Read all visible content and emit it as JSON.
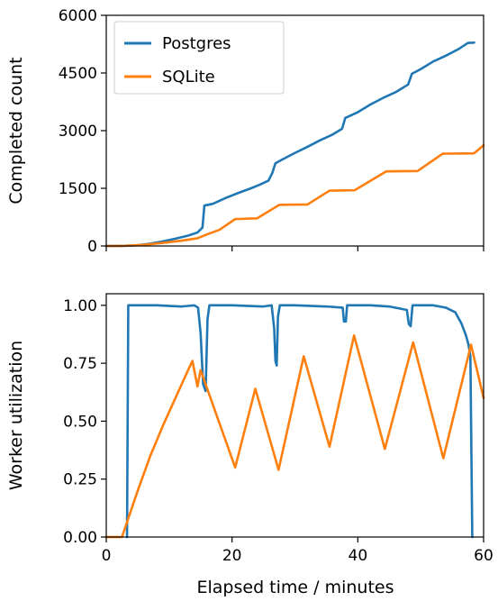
{
  "chart_data": [
    {
      "type": "line",
      "ylabel": "Completed count",
      "xlim": [
        0,
        60
      ],
      "ylim": [
        0,
        6000
      ],
      "x_ticks": [
        "0",
        "20",
        "40",
        "60"
      ],
      "y_ticks": [
        "0",
        "1500",
        "3000",
        "4500",
        "6000"
      ],
      "grid": false,
      "legend": {
        "placement": "top-left",
        "entries": [
          "Postgres",
          "SQLite"
        ]
      },
      "series": [
        {
          "name": "Postgres",
          "color": "#1f77b4",
          "points": [
            [
              0,
              0
            ],
            [
              3,
              5
            ],
            [
              5,
              20
            ],
            [
              7,
              60
            ],
            [
              9,
              120
            ],
            [
              11,
              190
            ],
            [
              13,
              270
            ],
            [
              14.5,
              350
            ],
            [
              15.3,
              480
            ],
            [
              15.6,
              1050
            ],
            [
              17,
              1100
            ],
            [
              19,
              1250
            ],
            [
              21,
              1380
            ],
            [
              23,
              1500
            ],
            [
              24.5,
              1600
            ],
            [
              25.8,
              1700
            ],
            [
              26.4,
              1900
            ],
            [
              26.9,
              2150
            ],
            [
              28,
              2250
            ],
            [
              30,
              2420
            ],
            [
              32,
              2580
            ],
            [
              34,
              2750
            ],
            [
              36,
              2900
            ],
            [
              37.5,
              3050
            ],
            [
              38,
              3330
            ],
            [
              40,
              3480
            ],
            [
              42,
              3680
            ],
            [
              44,
              3850
            ],
            [
              46,
              4000
            ],
            [
              48,
              4200
            ],
            [
              48.6,
              4480
            ],
            [
              50,
              4600
            ],
            [
              52,
              4800
            ],
            [
              54,
              4950
            ],
            [
              56,
              5120
            ],
            [
              57.5,
              5280
            ],
            [
              58.5,
              5290
            ]
          ]
        },
        {
          "name": "SQLite",
          "color": "#ff7f0e",
          "points": [
            [
              0,
              0
            ],
            [
              3,
              5
            ],
            [
              6,
              30
            ],
            [
              9,
              80
            ],
            [
              12,
              140
            ],
            [
              14.5,
              200
            ],
            [
              16,
              300
            ],
            [
              18,
              420
            ],
            [
              20.5,
              700
            ],
            [
              24,
              720
            ],
            [
              27.5,
              1070
            ],
            [
              32,
              1080
            ],
            [
              35.5,
              1440
            ],
            [
              39.5,
              1450
            ],
            [
              44.5,
              1940
            ],
            [
              49.5,
              1950
            ],
            [
              53.5,
              2400
            ],
            [
              58.5,
              2410
            ],
            [
              60,
              2620
            ]
          ]
        }
      ]
    },
    {
      "type": "line",
      "xlabel": "Elapsed time / minutes",
      "ylabel": "Worker utilization",
      "xlim": [
        0,
        60
      ],
      "ylim": [
        0,
        1.05
      ],
      "x_ticks": [
        "0",
        "20",
        "40",
        "60"
      ],
      "y_ticks": [
        "0.00",
        "0.25",
        "0.50",
        "0.75",
        "1.00"
      ],
      "grid": false,
      "series": [
        {
          "name": "Postgres",
          "color": "#1f77b4",
          "points": [
            [
              3.3,
              0
            ],
            [
              3.5,
              1.0
            ],
            [
              8,
              1.0
            ],
            [
              12,
              0.995
            ],
            [
              14,
              1.0
            ],
            [
              14.6,
              0.99
            ],
            [
              15,
              0.88
            ],
            [
              15.4,
              0.66
            ],
            [
              15.8,
              0.63
            ],
            [
              16.1,
              0.94
            ],
            [
              16.4,
              1.0
            ],
            [
              20,
              1.0
            ],
            [
              25,
              0.995
            ],
            [
              26.3,
              1.0
            ],
            [
              26.7,
              0.9
            ],
            [
              26.9,
              0.76
            ],
            [
              27.1,
              0.74
            ],
            [
              27.3,
              0.95
            ],
            [
              27.6,
              1.0
            ],
            [
              30,
              1.0
            ],
            [
              35,
              0.995
            ],
            [
              37.6,
              0.99
            ],
            [
              37.8,
              0.93
            ],
            [
              38.1,
              0.93
            ],
            [
              38.3,
              1.0
            ],
            [
              42,
              1.0
            ],
            [
              45,
              0.995
            ],
            [
              47.8,
              0.98
            ],
            [
              48.1,
              0.92
            ],
            [
              48.4,
              0.91
            ],
            [
              48.7,
              1.0
            ],
            [
              52,
              1.0
            ],
            [
              54,
              0.99
            ],
            [
              55.5,
              0.97
            ],
            [
              56.5,
              0.92
            ],
            [
              57.2,
              0.87
            ],
            [
              57.6,
              0.83
            ],
            [
              57.9,
              0.78
            ],
            [
              58.2,
              0
            ]
          ]
        },
        {
          "name": "SQLite",
          "color": "#ff7f0e",
          "points": [
            [
              0,
              0
            ],
            [
              2.5,
              0
            ],
            [
              3.5,
              0.08
            ],
            [
              5,
              0.2
            ],
            [
              7,
              0.35
            ],
            [
              9,
              0.48
            ],
            [
              11,
              0.6
            ],
            [
              13,
              0.72
            ],
            [
              13.7,
              0.76
            ],
            [
              14.5,
              0.65
            ],
            [
              15,
              0.72
            ],
            [
              20.5,
              0.3
            ],
            [
              23.7,
              0.64
            ],
            [
              27.4,
              0.29
            ],
            [
              31.4,
              0.78
            ],
            [
              35.5,
              0.39
            ],
            [
              39.4,
              0.87
            ],
            [
              44.3,
              0.38
            ],
            [
              48.8,
              0.84
            ],
            [
              53.6,
              0.34
            ],
            [
              58,
              0.83
            ],
            [
              60,
              0.6
            ]
          ]
        }
      ]
    }
  ]
}
